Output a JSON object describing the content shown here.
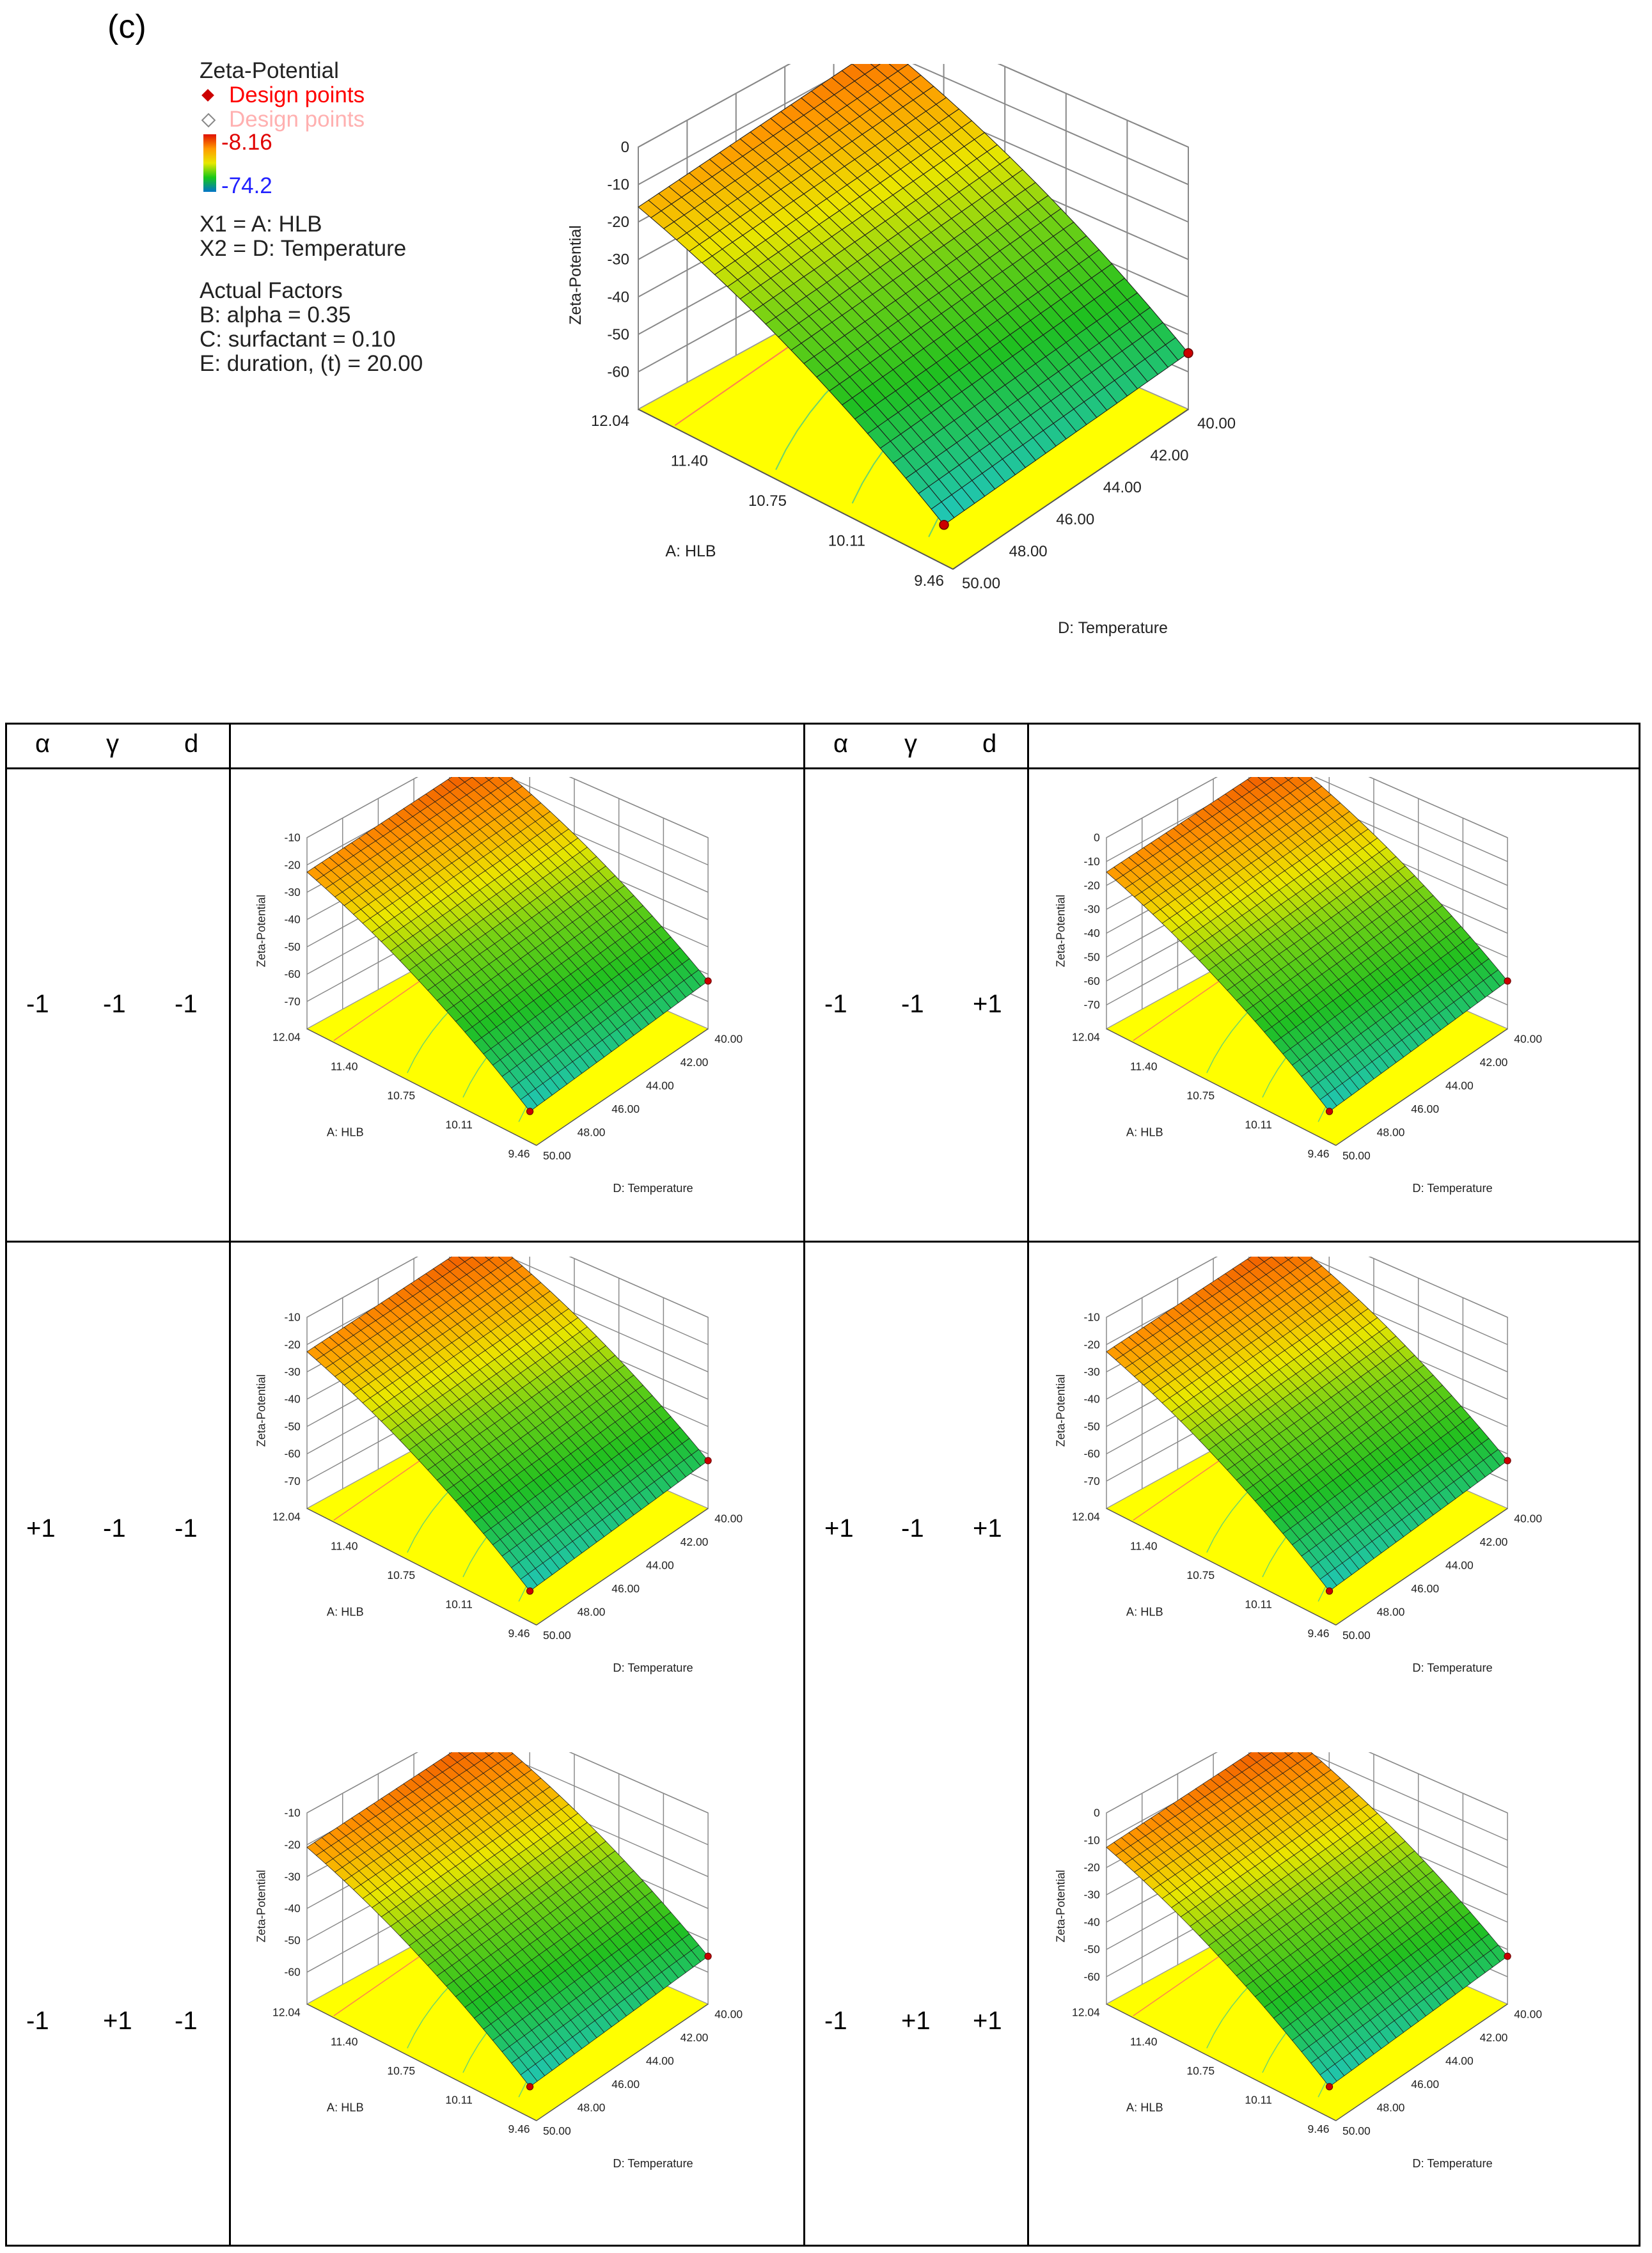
{
  "panel_label": "(c)",
  "legend": {
    "title": "Zeta-Potential",
    "design_points": "Design points",
    "design_points_below": "Design points",
    "high": "-8.16",
    "low": "-74.2",
    "x1": "X1 = A: HLB",
    "x2": "X2 = D: Temperature",
    "actual_factors": "Actual Factors",
    "factor_b": "B: alpha = 0.35",
    "factor_c": "C: surfactant = 0.10",
    "factor_e": "E: duration, (t) = 20.00"
  },
  "table": {
    "headers": [
      "α",
      "γ",
      "d",
      "",
      "α",
      "γ",
      "d",
      ""
    ],
    "rows": [
      {
        "left": [
          "-1",
          "-1",
          "-1"
        ],
        "right": [
          "-1",
          "-1",
          "+1"
        ]
      },
      {
        "left": [
          "+1",
          "-1",
          "-1"
        ],
        "right": [
          "+1",
          "-1",
          "+1"
        ]
      },
      {
        "left": [
          "-1",
          "+1",
          "-1"
        ],
        "right": [
          "-1",
          "+1",
          "+1"
        ]
      }
    ]
  },
  "colors": {
    "surface_top": "#e02000",
    "surface_mid": "#e6e600",
    "surface_green": "#20c020",
    "surface_low": "#20c8e0",
    "floor": "#ffff00",
    "design_point": "#cc0000"
  },
  "chart_data": [
    {
      "type": "surface3d",
      "id": "main",
      "zlabel": "Zeta-Potential",
      "xlabel": "A: HLB",
      "ylabel": "D: Temperature",
      "x_ticks": [
        "12.04",
        "11.40",
        "10.75",
        "10.11",
        "9.46"
      ],
      "y_ticks": [
        "40.00",
        "42.00",
        "44.00",
        "46.00",
        "48.00",
        "50.00"
      ],
      "z_ticks": [
        "0",
        "-10",
        "-20",
        "-30",
        "-40",
        "-50",
        "-60"
      ],
      "zlim": [
        -70,
        0
      ],
      "corners": {
        "hlb_high_temp_low": -8.16,
        "hlb_high_temp_high": -16,
        "hlb_low_temp_low": -55,
        "hlb_low_temp_high": -65
      }
    },
    {
      "type": "surface3d",
      "id": "r1l",
      "factors": {
        "alpha": "-1",
        "gamma": "-1",
        "d": "-1"
      },
      "zlabel": "Zeta-Potential",
      "xlabel": "A: HLB",
      "ylabel": "D: Temperature",
      "x_ticks": [
        "12.04",
        "11.40",
        "10.75",
        "10.11",
        "9.46"
      ],
      "y_ticks": [
        "40.00",
        "42.00",
        "44.00",
        "46.00",
        "48.00",
        "50.00"
      ],
      "z_ticks": [
        "-10",
        "-20",
        "-30",
        "-40",
        "-50",
        "-60",
        "-70"
      ],
      "zlim": [
        -80,
        -10
      ]
    },
    {
      "type": "surface3d",
      "id": "r1r",
      "factors": {
        "alpha": "-1",
        "gamma": "-1",
        "d": "+1"
      },
      "zlabel": "Zeta-Potential",
      "xlabel": "A: HLB",
      "ylabel": "D: Temperature",
      "x_ticks": [
        "12.04",
        "11.40",
        "10.75",
        "10.11",
        "9.46"
      ],
      "y_ticks": [
        "40.00",
        "42.00",
        "44.00",
        "46.00",
        "48.00",
        "50.00"
      ],
      "z_ticks": [
        "0",
        "-10",
        "-20",
        "-30",
        "-40",
        "-50",
        "-60",
        "-70"
      ],
      "zlim": [
        -80,
        0
      ]
    },
    {
      "type": "surface3d",
      "id": "r2l",
      "factors": {
        "alpha": "+1",
        "gamma": "-1",
        "d": "-1"
      },
      "zlabel": "Zeta-Potential",
      "xlabel": "A: HLB",
      "ylabel": "D: Temperature",
      "x_ticks": [
        "12.04",
        "11.40",
        "10.75",
        "10.11",
        "9.46"
      ],
      "y_ticks": [
        "40.00",
        "42.00",
        "44.00",
        "46.00",
        "48.00",
        "50.00"
      ],
      "z_ticks": [
        "-10",
        "-20",
        "-30",
        "-40",
        "-50",
        "-60",
        "-70"
      ],
      "zlim": [
        -80,
        -10
      ]
    },
    {
      "type": "surface3d",
      "id": "r2r",
      "factors": {
        "alpha": "+1",
        "gamma": "-1",
        "d": "+1"
      },
      "zlabel": "Zeta-Potential",
      "xlabel": "A: HLB",
      "ylabel": "D: Temperature",
      "x_ticks": [
        "12.04",
        "11.40",
        "10.75",
        "10.11",
        "9.46"
      ],
      "y_ticks": [
        "40.00",
        "42.00",
        "44.00",
        "46.00",
        "48.00",
        "50.00"
      ],
      "z_ticks": [
        "-10",
        "-20",
        "-30",
        "-40",
        "-50",
        "-60",
        "-70"
      ],
      "zlim": [
        -80,
        -10
      ]
    },
    {
      "type": "surface3d",
      "id": "r3l",
      "factors": {
        "alpha": "-1",
        "gamma": "+1",
        "d": "-1"
      },
      "zlabel": "Zeta-Potential",
      "xlabel": "A: HLB",
      "ylabel": "D: Temperature",
      "x_ticks": [
        "12.04",
        "11.40",
        "10.75",
        "10.11",
        "9.46"
      ],
      "y_ticks": [
        "40.00",
        "42.00",
        "44.00",
        "46.00",
        "48.00",
        "50.00"
      ],
      "z_ticks": [
        "-10",
        "-20",
        "-30",
        "-40",
        "-50",
        "-60"
      ],
      "zlim": [
        -70,
        -10
      ]
    },
    {
      "type": "surface3d",
      "id": "r3r",
      "factors": {
        "alpha": "-1",
        "gamma": "+1",
        "d": "+1"
      },
      "zlabel": "Zeta-Potential",
      "xlabel": "A: HLB",
      "ylabel": "D: Temperature",
      "x_ticks": [
        "12.04",
        "11.40",
        "10.75",
        "10.11",
        "9.46"
      ],
      "y_ticks": [
        "40.00",
        "42.00",
        "44.00",
        "46.00",
        "48.00",
        "50.00"
      ],
      "z_ticks": [
        "0",
        "-10",
        "-20",
        "-30",
        "-40",
        "-50",
        "-60"
      ],
      "zlim": [
        -70,
        0
      ]
    }
  ]
}
